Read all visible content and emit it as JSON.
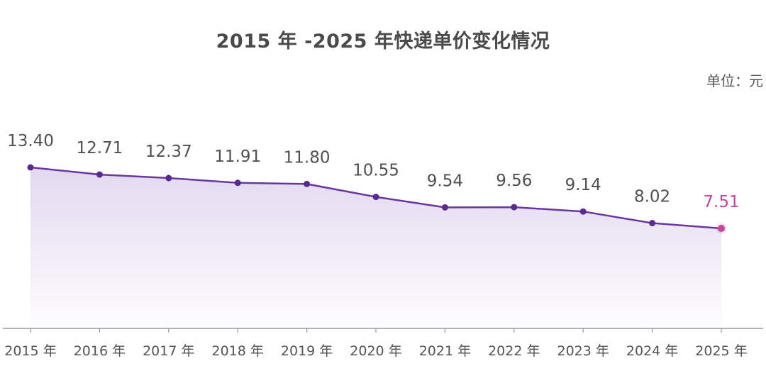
{
  "chart_data": {
    "type": "area",
    "title": "2015 年 -2025 年快递单价变化情况",
    "unit": "单位：元",
    "categories": [
      "2015 年",
      "2016 年",
      "2017 年",
      "2018 年",
      "2019 年",
      "2020 年",
      "2021 年",
      "2022 年",
      "2023 年",
      "2024 年",
      "2025 年"
    ],
    "values": [
      13.4,
      12.71,
      12.37,
      11.91,
      11.8,
      10.55,
      9.54,
      9.56,
      9.14,
      8.02,
      7.51
    ],
    "value_labels": [
      "13.40",
      "12.71",
      "12.37",
      "11.91",
      "11.80",
      "10.55",
      "9.54",
      "9.56",
      "9.14",
      "8.02",
      "7.51"
    ],
    "grid": false,
    "legend": "none",
    "colors": {
      "line": "#6a36a0",
      "point": "#5b2a91",
      "highlight": "#c4479a",
      "fill": "#d9ccea",
      "text": "#505050"
    }
  }
}
